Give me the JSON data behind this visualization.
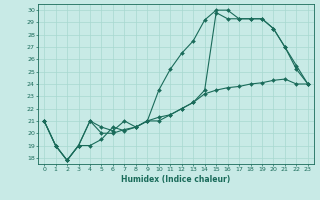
{
  "xlabel": "Humidex (Indice chaleur)",
  "bg_color": "#c8eae6",
  "line_color": "#1a6b5a",
  "grid_color": "#a8d8d0",
  "xlim": [
    -0.5,
    23.5
  ],
  "ylim": [
    17.5,
    30.5
  ],
  "yticks": [
    18,
    19,
    20,
    21,
    22,
    23,
    24,
    25,
    26,
    27,
    28,
    29,
    30
  ],
  "xticks": [
    0,
    1,
    2,
    3,
    4,
    5,
    6,
    7,
    8,
    9,
    10,
    11,
    12,
    13,
    14,
    15,
    16,
    17,
    18,
    19,
    20,
    21,
    22,
    23
  ],
  "line1_x": [
    0,
    1,
    2,
    3,
    4,
    5,
    6,
    7,
    8,
    9,
    10,
    11,
    12,
    13,
    14,
    15,
    16,
    17,
    18,
    19,
    20,
    21,
    22,
    23
  ],
  "line1_y": [
    21.0,
    19.0,
    17.8,
    19.0,
    21.0,
    20.0,
    20.0,
    20.3,
    20.5,
    21.0,
    21.3,
    21.5,
    22.0,
    22.5,
    23.2,
    23.5,
    23.7,
    23.8,
    24.0,
    24.1,
    24.3,
    24.4,
    24.0,
    24.0
  ],
  "line2_x": [
    0,
    1,
    2,
    3,
    4,
    5,
    6,
    7,
    8,
    9,
    10,
    11,
    12,
    13,
    14,
    15,
    16,
    17,
    18,
    19,
    20,
    21,
    22,
    23
  ],
  "line2_y": [
    21.0,
    19.0,
    17.8,
    19.0,
    21.0,
    20.5,
    20.2,
    21.0,
    20.5,
    21.0,
    23.5,
    25.2,
    26.5,
    27.5,
    29.2,
    30.0,
    30.0,
    29.3,
    29.3,
    29.3,
    28.5,
    27.0,
    25.2,
    24.0
  ],
  "line3_x": [
    0,
    1,
    2,
    3,
    4,
    5,
    6,
    7,
    8,
    9,
    10,
    11,
    12,
    13,
    14,
    15,
    16,
    17,
    18,
    19,
    20,
    21,
    22,
    23
  ],
  "line3_y": [
    21.0,
    19.0,
    17.8,
    19.0,
    19.0,
    19.5,
    20.5,
    20.2,
    20.5,
    21.0,
    21.0,
    21.5,
    22.0,
    22.5,
    23.5,
    29.8,
    29.3,
    29.3,
    29.3,
    29.3,
    28.5,
    27.0,
    25.5,
    24.0
  ]
}
